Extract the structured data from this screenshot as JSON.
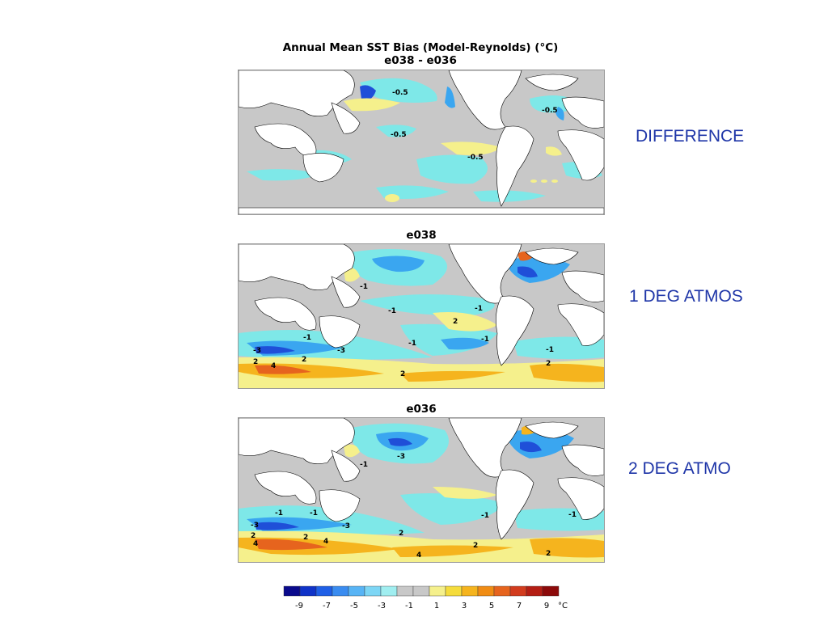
{
  "figure_title": "Annual Mean SST Bias (Model-Reynolds) (°C)",
  "panels": [
    {
      "title": "e038 - e036",
      "side_label": "DIFFERENCE",
      "contour_labels": [
        "-0.5",
        "-0.5",
        "-0.5",
        "-0.5"
      ]
    },
    {
      "title": "e038",
      "side_label": "1 DEG ATMOS",
      "contour_labels": [
        "-1",
        "-1",
        "-1",
        "-1",
        "-1",
        "-3",
        "-3",
        "-1",
        "2",
        "2",
        "4",
        "2",
        "2",
        "2",
        "-1"
      ]
    },
    {
      "title": "e036",
      "side_label": "2 DEG ATMO",
      "contour_labels": [
        "-1",
        "-3",
        "-1",
        "-1",
        "-3",
        "-3",
        "-1",
        "2",
        "4",
        "4",
        "2",
        "4",
        "2",
        "2",
        "-1",
        "2"
      ]
    }
  ],
  "colorbar": {
    "tick_labels": [
      "-9",
      "-7",
      "-5",
      "-3",
      "-1",
      "1",
      "3",
      "5",
      "7",
      "9"
    ],
    "unit": "°C",
    "colors": [
      "#0a0a8c",
      "#1033c8",
      "#1f5fe6",
      "#3a8cf0",
      "#58b4f5",
      "#7dd6f5",
      "#a0eef0",
      "#c8c8c8",
      "#c8c8c8",
      "#f5f08c",
      "#f5dc3c",
      "#f5b41e",
      "#f08c14",
      "#e6641e",
      "#d23c1e",
      "#b41e14",
      "#8c0a0a"
    ]
  },
  "colors": {
    "land": "#ffffff",
    "neutral": "#c8c8c8",
    "light_blue": "#7ee8e8",
    "mid_blue": "#3aa6f0",
    "dark_blue": "#1f4fd8",
    "yellow": "#f5f08c",
    "orange": "#f5b41e",
    "red": "#e6641e",
    "side_label_color": "#1f36a8"
  }
}
